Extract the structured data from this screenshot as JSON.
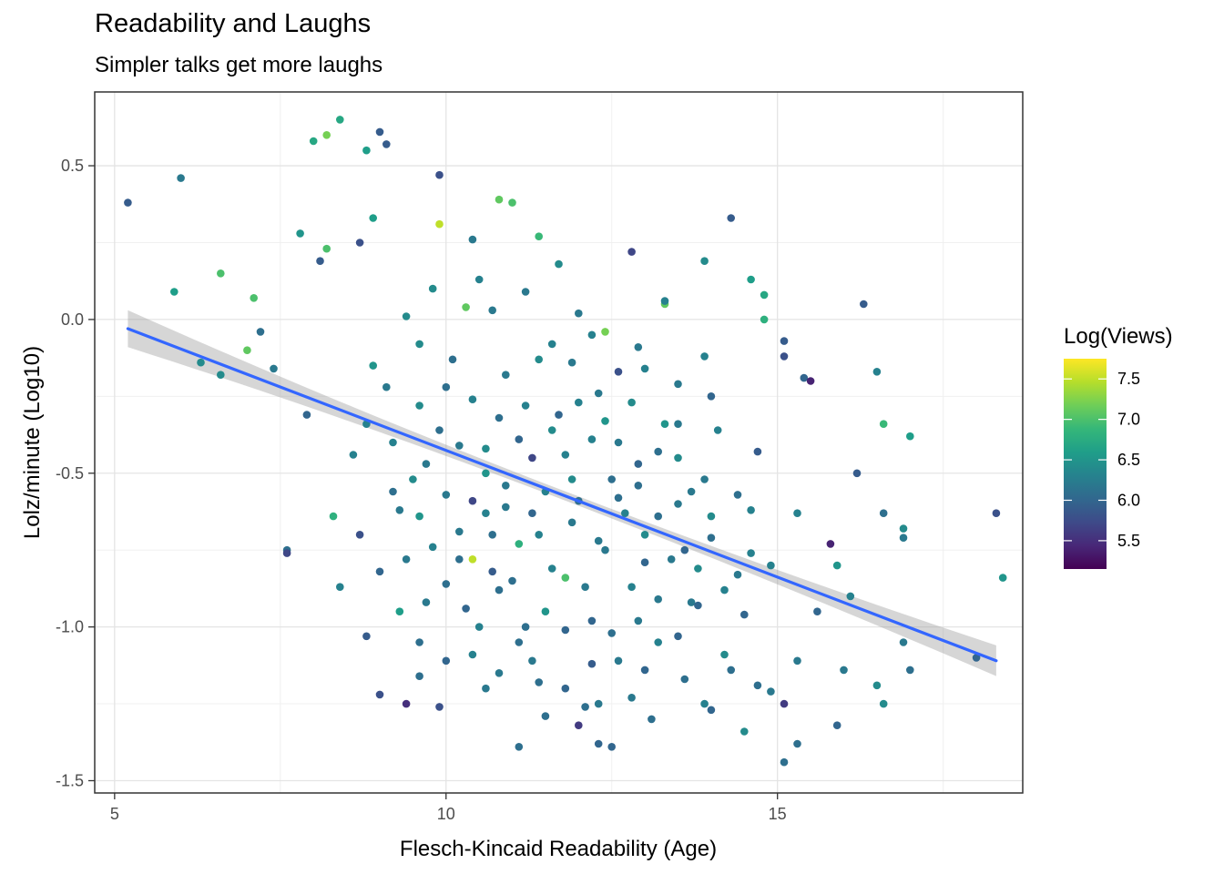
{
  "chart_data": {
    "type": "scatter",
    "title": "Readability and Laughs",
    "subtitle": "Simpler talks get more laughs",
    "xlabel": "Flesch-Kincaid Readability (Age)",
    "ylabel": "Lolz/minute (Log10)",
    "xlim": [
      4.7,
      18.7
    ],
    "ylim": [
      -1.54,
      0.74
    ],
    "x_ticks": [
      5,
      10,
      15
    ],
    "x_tick_labels": [
      "5",
      "10",
      "15"
    ],
    "y_ticks": [
      0.5,
      0.0,
      -0.5,
      -1.0,
      -1.5
    ],
    "y_tick_labels": [
      "0.5",
      "0.0",
      "-0.5",
      "-1.0",
      "-1.5"
    ],
    "grid": true,
    "color_scale": {
      "title": "Log(Views)",
      "palette": "viridis",
      "min": 5.15,
      "max": 7.75,
      "ticks": [
        7.5,
        7.0,
        6.5,
        6.0,
        5.5
      ],
      "tick_labels": [
        "7.5",
        "7.0",
        "6.5",
        "6.0",
        "5.5"
      ],
      "stops": [
        "#440154",
        "#482878",
        "#3e4a89",
        "#31688e",
        "#26828e",
        "#1f9e89",
        "#35b779",
        "#6ece58",
        "#b5de2b",
        "#fde725"
      ]
    },
    "trend_line": {
      "method": "linear",
      "color": "#3366ff",
      "band_color": "#999999",
      "x_start": 5.2,
      "y_start": -0.03,
      "x_end": 18.3,
      "y_end": -1.11,
      "se_start": 0.06,
      "se_mid": 0.015,
      "se_end": 0.05
    },
    "points": [
      [
        5.2,
        0.38,
        5.9
      ],
      [
        6.0,
        0.46,
        6.2
      ],
      [
        5.9,
        0.09,
        6.6
      ],
      [
        6.6,
        0.15,
        7.0
      ],
      [
        7.1,
        0.07,
        7.0
      ],
      [
        6.3,
        -0.14,
        6.4
      ],
      [
        7.0,
        -0.1,
        7.1
      ],
      [
        7.2,
        -0.04,
        6.1
      ],
      [
        6.6,
        -0.18,
        6.4
      ],
      [
        7.8,
        0.28,
        6.5
      ],
      [
        8.0,
        0.58,
        6.7
      ],
      [
        8.2,
        0.6,
        7.2
      ],
      [
        8.4,
        0.65,
        6.7
      ],
      [
        8.8,
        0.55,
        6.6
      ],
      [
        9.0,
        0.61,
        5.9
      ],
      [
        9.1,
        0.57,
        5.9
      ],
      [
        8.1,
        0.19,
        5.9
      ],
      [
        8.2,
        0.23,
        7.0
      ],
      [
        8.9,
        0.33,
        6.6
      ],
      [
        8.7,
        0.25,
        5.8
      ],
      [
        7.6,
        -0.75,
        6.1
      ],
      [
        7.6,
        -0.76,
        5.7
      ],
      [
        7.9,
        -0.31,
        6.0
      ],
      [
        7.4,
        -0.16,
        6.2
      ],
      [
        8.3,
        -0.64,
        6.8
      ],
      [
        8.6,
        -0.44,
        6.3
      ],
      [
        8.7,
        -0.7,
        5.8
      ],
      [
        8.4,
        -0.87,
        6.3
      ],
      [
        8.8,
        -1.03,
        5.9
      ],
      [
        9.0,
        -1.22,
        5.8
      ],
      [
        9.4,
        -1.25,
        5.5
      ],
      [
        9.6,
        -1.16,
        6.1
      ],
      [
        9.9,
        -1.26,
        5.8
      ],
      [
        9.3,
        -0.95,
        6.6
      ],
      [
        9.9,
        0.31,
        7.5
      ],
      [
        9.9,
        0.47,
        5.8
      ],
      [
        10.8,
        0.39,
        7.1
      ],
      [
        11.0,
        0.38,
        7.0
      ],
      [
        10.3,
        0.04,
        7.1
      ],
      [
        10.4,
        -0.78,
        7.5
      ],
      [
        11.8,
        -0.84,
        7.0
      ],
      [
        12.4,
        -0.04,
        7.2
      ],
      [
        13.3,
        0.05,
        7.1
      ],
      [
        11.4,
        0.27,
        6.9
      ],
      [
        12.8,
        0.22,
        5.7
      ],
      [
        14.3,
        0.33,
        5.9
      ],
      [
        14.6,
        0.13,
        6.6
      ],
      [
        14.8,
        0.08,
        6.7
      ],
      [
        13.9,
        0.19,
        6.4
      ],
      [
        14.8,
        0.0,
        6.8
      ],
      [
        15.1,
        -0.07,
        5.9
      ],
      [
        15.1,
        -0.12,
        5.8
      ],
      [
        15.4,
        -0.19,
        6.0
      ],
      [
        15.5,
        -0.2,
        5.4
      ],
      [
        16.3,
        0.05,
        5.9
      ],
      [
        16.5,
        -0.17,
        6.3
      ],
      [
        16.6,
        -0.34,
        6.9
      ],
      [
        17.0,
        -0.38,
        6.6
      ],
      [
        16.2,
        -0.5,
        5.9
      ],
      [
        16.6,
        -0.63,
        6.1
      ],
      [
        16.9,
        -0.68,
        6.4
      ],
      [
        16.9,
        -0.71,
        6.2
      ],
      [
        17.0,
        -1.14,
        6.1
      ],
      [
        16.9,
        -1.05,
        6.2
      ],
      [
        16.5,
        -1.19,
        6.4
      ],
      [
        16.6,
        -1.25,
        6.4
      ],
      [
        15.9,
        -1.32,
        6.0
      ],
      [
        15.8,
        -0.73,
        5.4
      ],
      [
        15.9,
        -0.8,
        6.5
      ],
      [
        16.1,
        -0.9,
        6.3
      ],
      [
        16.0,
        -1.14,
        6.2
      ],
      [
        15.1,
        -1.44,
        6.1
      ],
      [
        15.3,
        -1.38,
        6.1
      ],
      [
        15.1,
        -1.25,
        5.6
      ],
      [
        14.9,
        -1.21,
        6.2
      ],
      [
        14.5,
        -1.34,
        6.4
      ],
      [
        14.0,
        -1.27,
        6.0
      ],
      [
        18.3,
        -0.63,
        5.8
      ],
      [
        18.4,
        -0.84,
        6.5
      ],
      [
        18.0,
        -1.1,
        6.0
      ],
      [
        12.0,
        -1.32,
        5.6
      ],
      [
        11.1,
        -1.39,
        6.1
      ],
      [
        12.5,
        -1.39,
        6.0
      ],
      [
        12.3,
        -1.38,
        6.0
      ],
      [
        11.6,
        -0.08,
        6.3
      ],
      [
        12.2,
        -0.05,
        6.3
      ],
      [
        13.3,
        0.06,
        6.3
      ],
      [
        13.5,
        -0.21,
        6.2
      ],
      [
        14.0,
        -0.25,
        6.0
      ],
      [
        13.5,
        -0.45,
        6.4
      ],
      [
        12.6,
        -0.58,
        6.1
      ],
      [
        11.8,
        -0.44,
        6.3
      ],
      [
        11.1,
        -0.39,
        6.0
      ],
      [
        10.9,
        -0.54,
        6.2
      ],
      [
        11.9,
        -0.66,
        6.2
      ],
      [
        12.3,
        -0.72,
        6.2
      ],
      [
        13.0,
        -0.79,
        6.0
      ],
      [
        12.9,
        -0.54,
        6.1
      ],
      [
        11.4,
        -0.7,
        6.3
      ],
      [
        10.7,
        -0.7,
        6.1
      ],
      [
        10.4,
        -0.59,
        5.7
      ],
      [
        10.8,
        -0.88,
        6.1
      ],
      [
        11.2,
        -1.0,
        6.1
      ],
      [
        11.8,
        -1.01,
        6.0
      ],
      [
        12.9,
        -0.98,
        6.2
      ],
      [
        13.5,
        -1.03,
        6.0
      ],
      [
        14.2,
        -0.88,
        6.3
      ],
      [
        14.0,
        -0.71,
        6.1
      ],
      [
        13.7,
        -0.56,
        6.2
      ],
      [
        13.3,
        -0.34,
        6.5
      ],
      [
        12.8,
        -0.27,
        6.4
      ],
      [
        12.3,
        -0.24,
        6.2
      ],
      [
        11.7,
        -0.31,
        6.0
      ],
      [
        10.9,
        -0.18,
        6.2
      ],
      [
        10.4,
        -0.26,
        6.3
      ],
      [
        9.9,
        -0.36,
        6.1
      ],
      [
        9.7,
        -0.47,
        6.2
      ],
      [
        9.6,
        -0.64,
        6.5
      ],
      [
        9.4,
        -0.78,
        6.2
      ],
      [
        10.0,
        -0.86,
        6.1
      ],
      [
        10.5,
        -1.0,
        6.3
      ],
      [
        10.0,
        -1.11,
        6.0
      ],
      [
        10.6,
        -1.2,
        6.2
      ],
      [
        11.4,
        -1.18,
        6.1
      ],
      [
        12.2,
        -1.12,
        5.9
      ],
      [
        12.8,
        -1.23,
        6.2
      ],
      [
        13.6,
        -1.17,
        6.1
      ],
      [
        14.2,
        -1.09,
        6.4
      ],
      [
        14.5,
        -0.96,
        6.0
      ],
      [
        14.9,
        -0.8,
        6.3
      ],
      [
        14.6,
        -0.62,
        6.3
      ],
      [
        14.7,
        -0.43,
        5.9
      ],
      [
        14.1,
        -0.36,
        6.3
      ],
      [
        12.9,
        -0.09,
        6.2
      ],
      [
        12.0,
        0.02,
        6.2
      ],
      [
        11.2,
        0.09,
        6.2
      ],
      [
        10.5,
        0.13,
        6.3
      ],
      [
        9.8,
        0.1,
        6.4
      ],
      [
        9.6,
        -0.08,
        6.4
      ],
      [
        9.1,
        -0.22,
        6.2
      ],
      [
        8.8,
        -0.34,
        6.3
      ],
      [
        9.2,
        -0.56,
        6.1
      ],
      [
        9.6,
        -1.05,
        6.1
      ],
      [
        10.2,
        -0.69,
        6.2
      ],
      [
        10.8,
        -0.32,
        6.1
      ],
      [
        11.5,
        -0.56,
        6.3
      ],
      [
        12.1,
        -0.87,
        6.2
      ],
      [
        12.7,
        -0.63,
        6.3
      ],
      [
        13.2,
        -0.43,
        6.1
      ],
      [
        13.9,
        -0.52,
        6.2
      ],
      [
        13.8,
        -0.81,
        6.4
      ],
      [
        13.2,
        -0.91,
        6.2
      ],
      [
        12.5,
        -1.02,
        6.1
      ],
      [
        11.6,
        -0.81,
        6.3
      ],
      [
        10.9,
        -0.61,
        6.2
      ],
      [
        10.2,
        -0.41,
        6.2
      ],
      [
        9.6,
        -0.28,
        6.4
      ],
      [
        10.1,
        -0.13,
        6.1
      ],
      [
        10.7,
        0.03,
        6.2
      ],
      [
        11.4,
        -0.13,
        6.4
      ],
      [
        12.0,
        -0.27,
        6.3
      ],
      [
        12.6,
        -0.4,
        6.2
      ],
      [
        13.2,
        -0.64,
        6.1
      ],
      [
        13.7,
        -0.92,
        6.2
      ],
      [
        14.3,
        -1.14,
        6.1
      ],
      [
        13.9,
        -1.25,
        6.3
      ],
      [
        13.1,
        -1.3,
        6.1
      ],
      [
        12.3,
        -1.25,
        6.2
      ],
      [
        11.5,
        -1.29,
        6.1
      ],
      [
        10.8,
        -1.15,
        6.2
      ],
      [
        10.3,
        -0.94,
        6.0
      ],
      [
        9.8,
        -0.74,
        6.3
      ],
      [
        11.3,
        -0.45,
        5.7
      ],
      [
        12.6,
        -0.17,
        5.8
      ],
      [
        13.9,
        -0.12,
        6.3
      ],
      [
        11.7,
        0.18,
        6.4
      ],
      [
        10.4,
        0.26,
        6.2
      ],
      [
        9.4,
        0.01,
        6.4
      ],
      [
        8.9,
        -0.15,
        6.5
      ],
      [
        11.1,
        -0.73,
        6.8
      ],
      [
        12.4,
        -0.75,
        6.2
      ],
      [
        13.6,
        -0.75,
        6.0
      ],
      [
        14.6,
        -0.76,
        6.3
      ],
      [
        15.3,
        -0.63,
        6.3
      ],
      [
        15.6,
        -0.95,
        6.0
      ],
      [
        15.3,
        -1.11,
        6.2
      ],
      [
        14.7,
        -1.19,
        6.1
      ],
      [
        9.2,
        -0.4,
        6.3
      ],
      [
        9.5,
        -0.52,
        6.4
      ],
      [
        10.0,
        -0.57,
        6.2
      ],
      [
        10.6,
        -0.5,
        6.5
      ],
      [
        11.2,
        -0.28,
        6.3
      ],
      [
        11.9,
        -0.14,
        6.2
      ],
      [
        12.5,
        -0.52,
        6.1
      ],
      [
        13.0,
        -0.7,
        6.4
      ],
      [
        13.4,
        -0.78,
        6.2
      ],
      [
        12.2,
        -0.98,
        6.0
      ],
      [
        11.1,
        -1.05,
        6.1
      ],
      [
        10.4,
        -1.09,
        6.3
      ],
      [
        11.8,
        -1.2,
        6.0
      ],
      [
        12.6,
        -1.11,
        6.2
      ],
      [
        13.2,
        -1.05,
        6.3
      ],
      [
        13.8,
        -0.93,
        6.0
      ],
      [
        14.4,
        -0.57,
        6.1
      ],
      [
        13.5,
        -0.34,
        6.2
      ],
      [
        12.2,
        -0.39,
        6.3
      ],
      [
        10.6,
        -0.42,
        6.4
      ],
      [
        10.0,
        -0.22,
        6.1
      ],
      [
        9.3,
        -0.62,
        6.2
      ],
      [
        9.0,
        -0.82,
        6.0
      ],
      [
        11.0,
        -0.85,
        6.1
      ],
      [
        12.8,
        -0.87,
        6.3
      ],
      [
        11.5,
        -0.95,
        6.5
      ],
      [
        11.9,
        -0.52,
        6.4
      ],
      [
        12.4,
        -0.33,
        6.5
      ],
      [
        13.0,
        -0.16,
        6.3
      ],
      [
        10.2,
        -0.78,
        6.1
      ],
      [
        9.7,
        -0.92,
        6.2
      ],
      [
        10.7,
        -0.82,
        5.9
      ],
      [
        11.3,
        -0.63,
        6.0
      ],
      [
        12.0,
        -0.59,
        6.1
      ],
      [
        12.9,
        -0.47,
        6.0
      ],
      [
        13.5,
        -0.6,
        6.2
      ],
      [
        14.0,
        -0.64,
        6.4
      ],
      [
        14.4,
        -0.83,
        6.2
      ],
      [
        13.0,
        -1.14,
        6.0
      ],
      [
        12.1,
        -1.26,
        6.1
      ],
      [
        11.3,
        -1.11,
        6.2
      ],
      [
        10.6,
        -0.63,
        6.3
      ],
      [
        11.6,
        -0.36,
        6.4
      ]
    ]
  }
}
